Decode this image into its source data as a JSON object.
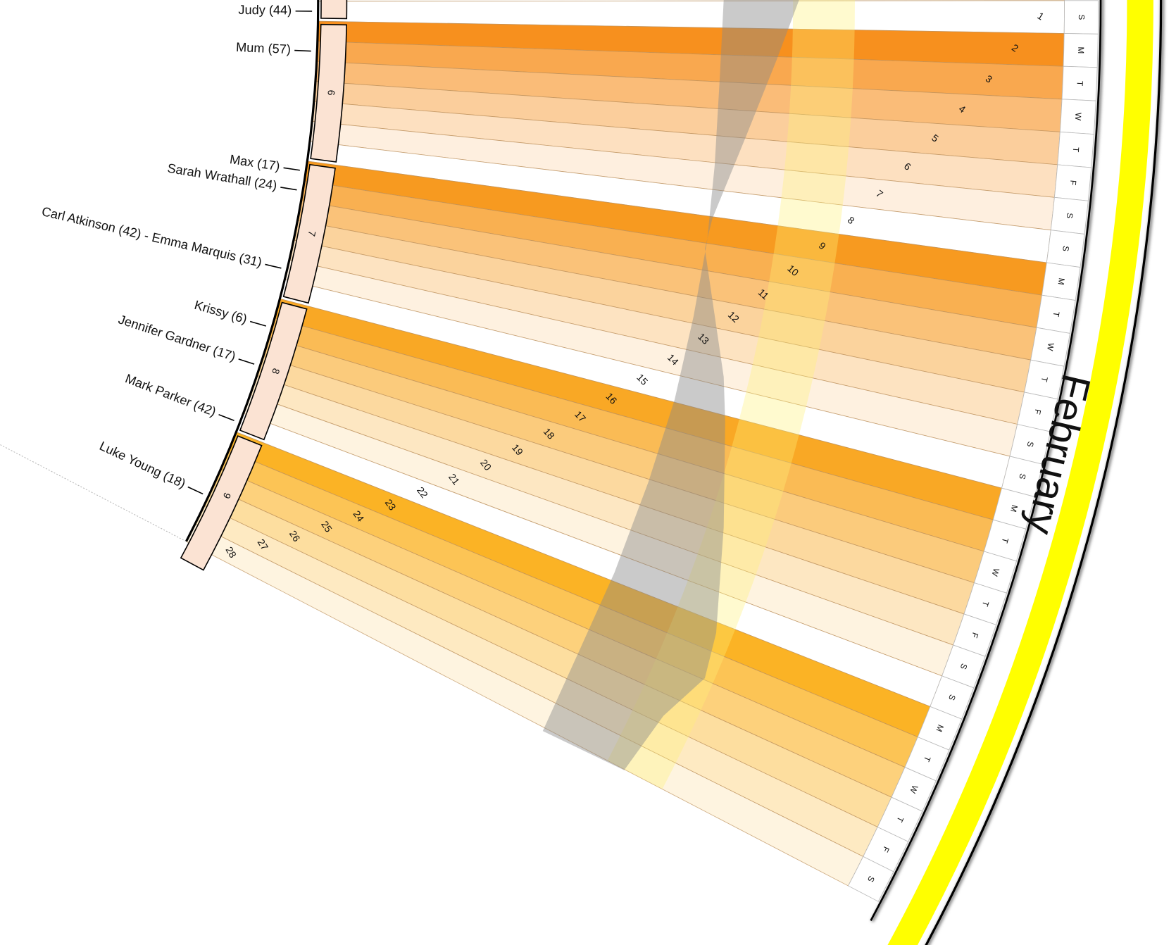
{
  "month": "February",
  "days": [
    {
      "number": "1",
      "weekday": "S"
    },
    {
      "number": "2",
      "weekday": "M"
    },
    {
      "number": "3",
      "weekday": "T"
    },
    {
      "number": "4",
      "weekday": "W"
    },
    {
      "number": "5",
      "weekday": "T"
    },
    {
      "number": "6",
      "weekday": "F"
    },
    {
      "number": "7",
      "weekday": "S"
    },
    {
      "number": "8",
      "weekday": "S"
    },
    {
      "number": "9",
      "weekday": "M"
    },
    {
      "number": "10",
      "weekday": "T"
    },
    {
      "number": "11",
      "weekday": "W"
    },
    {
      "number": "12",
      "weekday": "T"
    },
    {
      "number": "13",
      "weekday": "F"
    },
    {
      "number": "14",
      "weekday": "S"
    },
    {
      "number": "15",
      "weekday": "S"
    },
    {
      "number": "16",
      "weekday": "M"
    },
    {
      "number": "17",
      "weekday": "T"
    },
    {
      "number": "18",
      "weekday": "W"
    },
    {
      "number": "19",
      "weekday": "T"
    },
    {
      "number": "20",
      "weekday": "F"
    },
    {
      "number": "21",
      "weekday": "S"
    },
    {
      "number": "22",
      "weekday": "S"
    },
    {
      "number": "23",
      "weekday": "M"
    },
    {
      "number": "24",
      "weekday": "T"
    },
    {
      "number": "25",
      "weekday": "W"
    },
    {
      "number": "26",
      "weekday": "T"
    },
    {
      "number": "27",
      "weekday": "F"
    },
    {
      "number": "28",
      "weekday": "S"
    }
  ],
  "weeks": [
    "6",
    "7",
    "8",
    "9"
  ],
  "birthdays": [
    "Judy (44)",
    "Mum (57)",
    "Max (17)",
    "Sarah Wrathall (24)",
    "Carl Atkinson (42) - Emma Marquis (31)",
    "Krissy (6)",
    "Jennifer Gardner (17)",
    "Mark Parker (42)",
    "Luke Young (18)"
  ]
}
